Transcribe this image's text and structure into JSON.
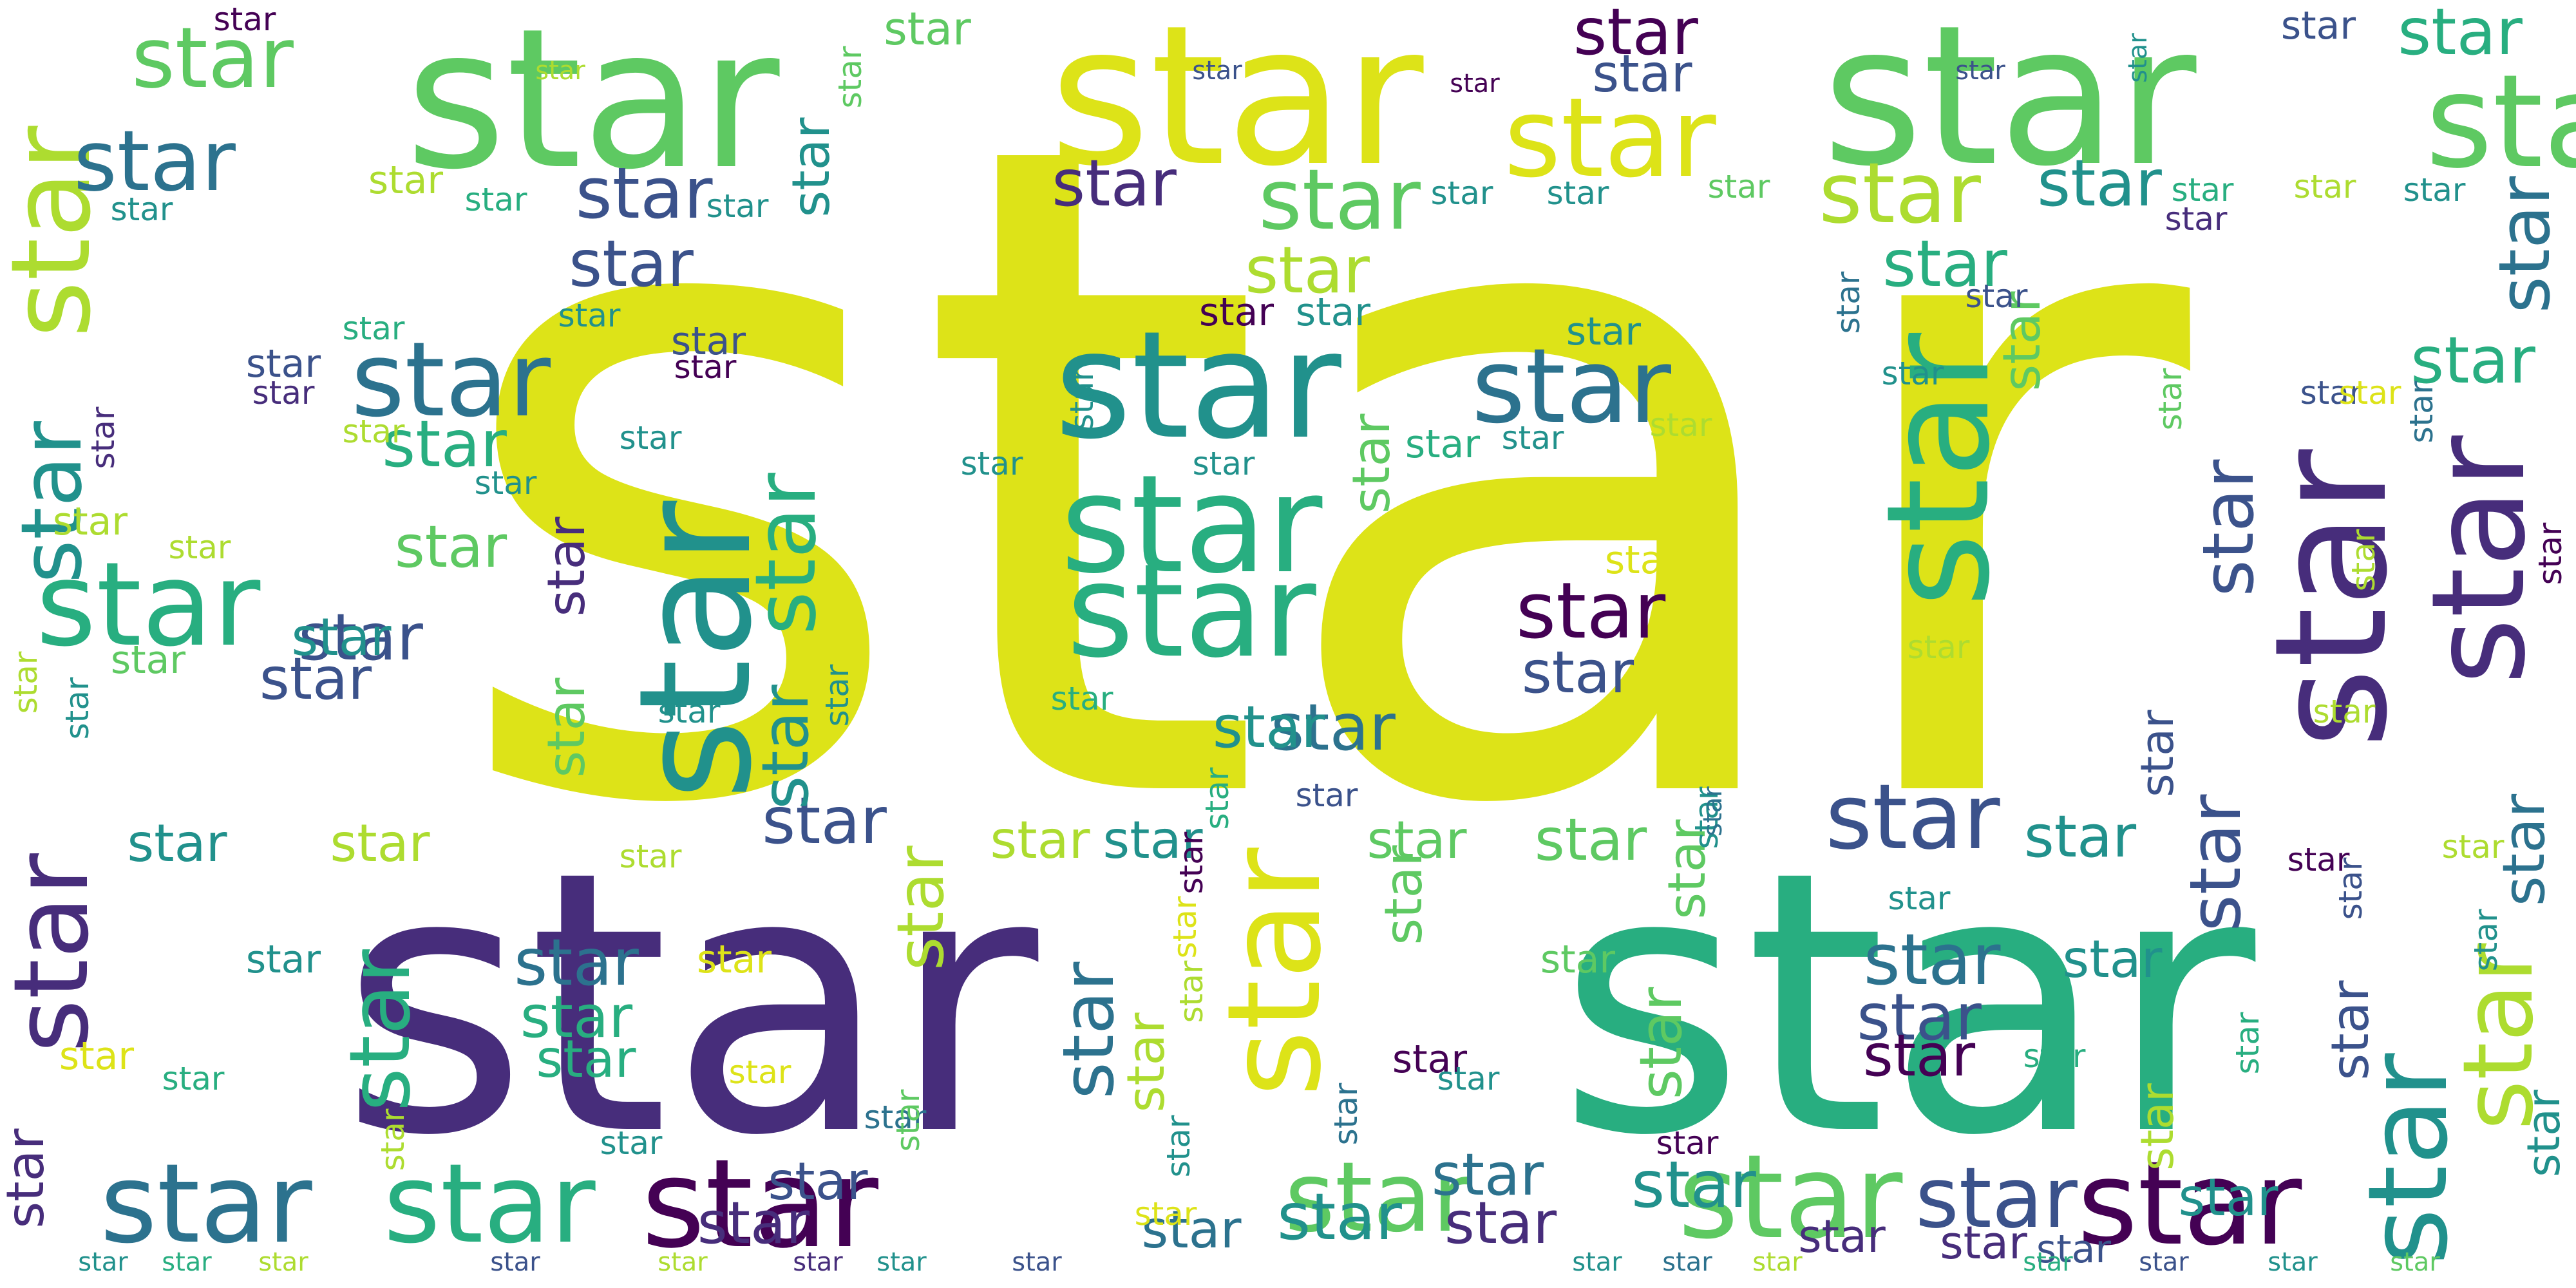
{
  "word": "star",
  "palette": [
    "#440154",
    "#472d7b",
    "#3b528b",
    "#2c728e",
    "#21918c",
    "#28ae80",
    "#5ec962",
    "#addc30",
    "#dde318"
  ]
}
